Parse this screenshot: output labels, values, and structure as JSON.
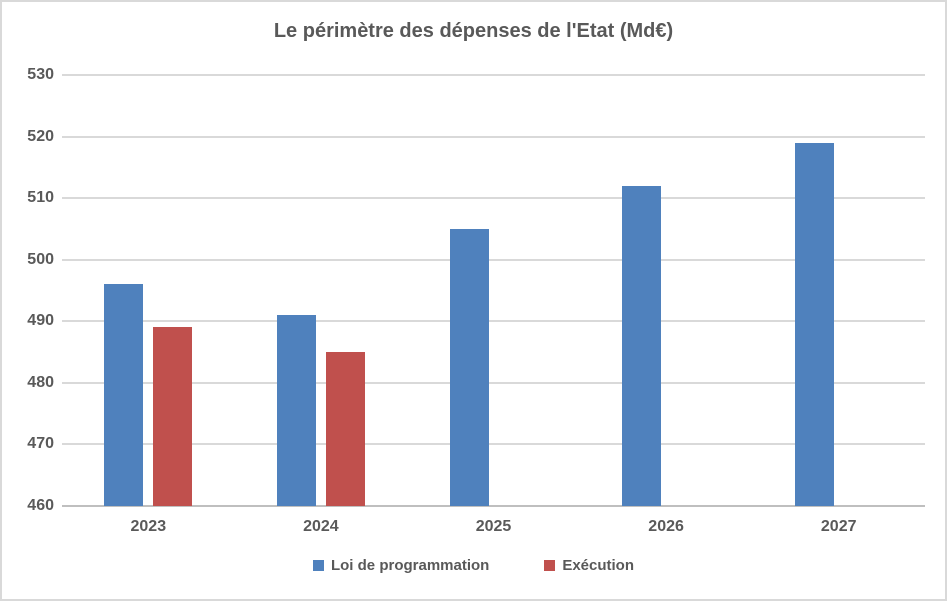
{
  "chart_title": "Le périmètre des dépenses de l'Etat (Md€)",
  "chart_data": {
    "type": "bar",
    "title": "Le périmètre des dépenses de l'Etat (Md€)",
    "categories": [
      "2023",
      "2024",
      "2025",
      "2026",
      "2027"
    ],
    "series": [
      {
        "name": "Loi de programmation",
        "color": "#4F81BD",
        "values": [
          496,
          491,
          505,
          512,
          519
        ]
      },
      {
        "name": "Exécution",
        "color": "#C0504D",
        "values": [
          489,
          485,
          null,
          null,
          null
        ]
      }
    ],
    "xlabel": "",
    "ylabel": "",
    "ylim": [
      460,
      530
    ],
    "ytick_step": 10,
    "yticks": [
      460,
      470,
      480,
      490,
      500,
      510,
      520,
      530
    ],
    "grid": true,
    "legend_position": "bottom"
  },
  "colors": {
    "background": "#ffffff",
    "border": "#d9d9d9",
    "gridline": "#d9d9d9",
    "axis_line": "#bfbfbf",
    "text": "#595959",
    "series_blue": "#4F81BD",
    "series_red": "#C0504D"
  }
}
